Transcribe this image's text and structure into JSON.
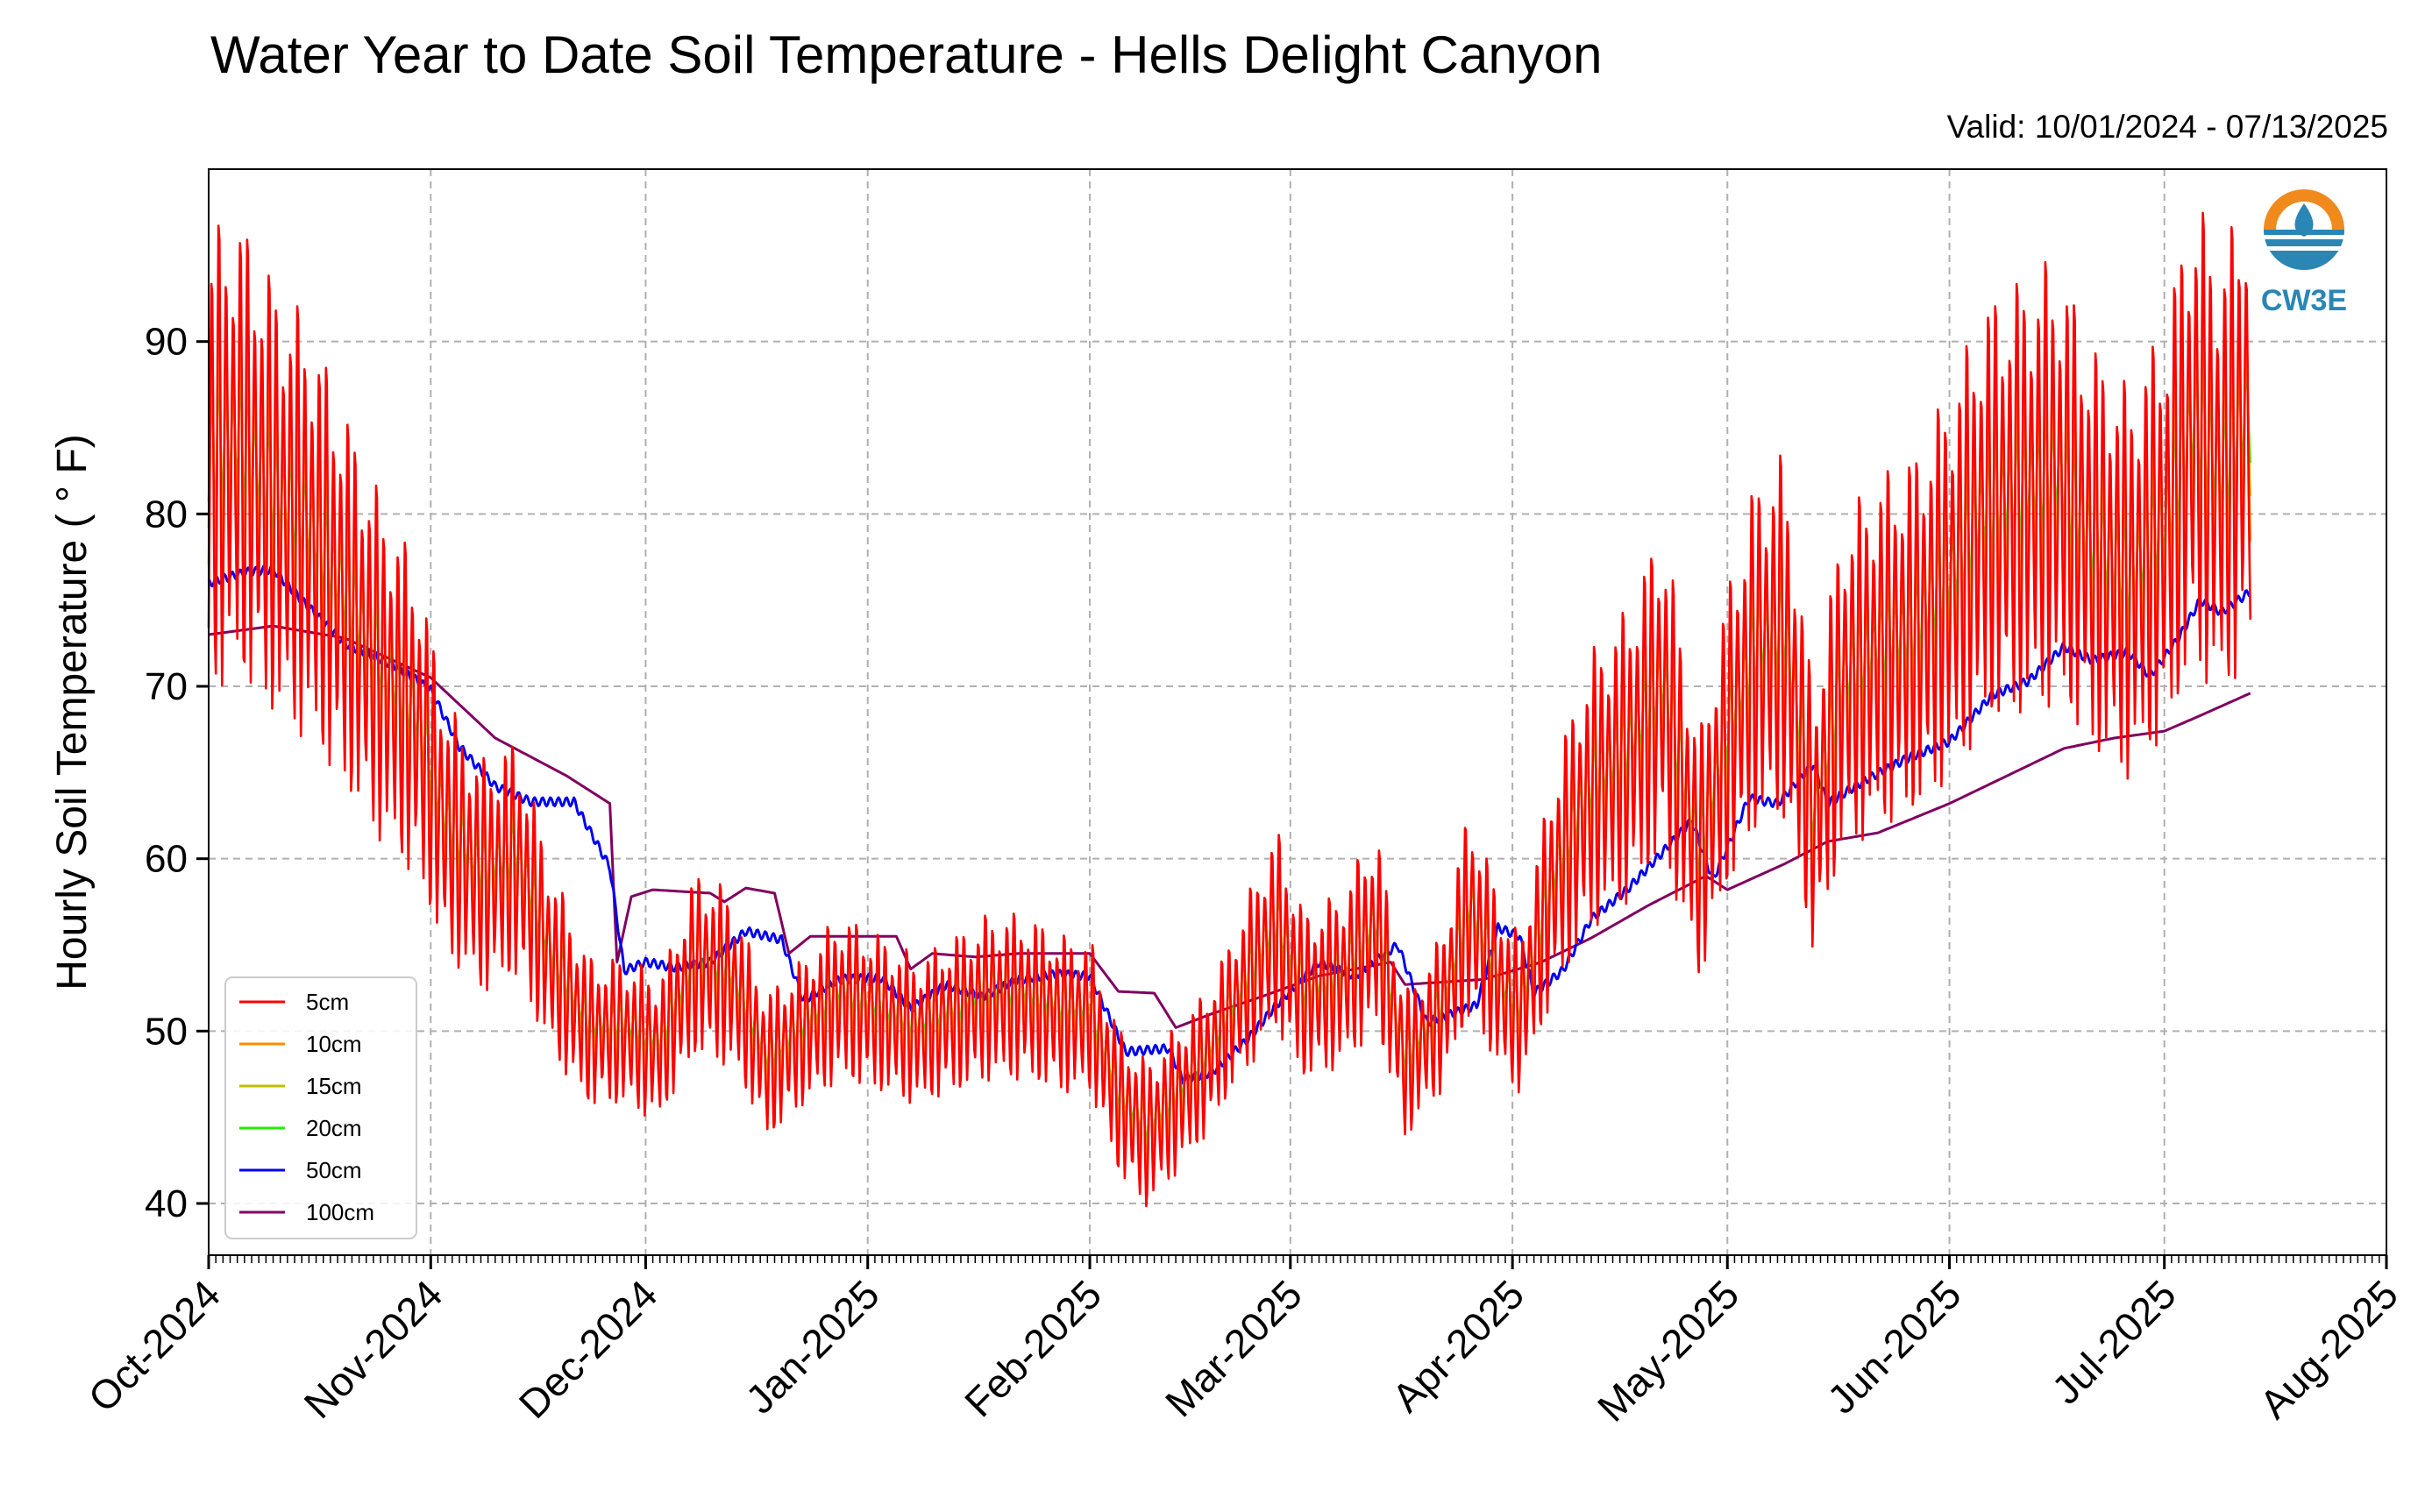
{
  "header": {
    "title": "Water Year to Date Soil Temperature - Hells Delight Canyon",
    "valid": "Valid: 10/01/2024 - 07/13/2025"
  },
  "logo": {
    "text": "CW3E",
    "icon": "cw3e-water-drop-logo"
  },
  "chart_data": {
    "type": "line",
    "title": "Water Year to Date Soil Temperature - Hells Delight Canyon",
    "xlabel": "",
    "ylabel": "Hourly Soil Temperature ( ° F)",
    "ylim": [
      37,
      100
    ],
    "xlim": [
      "2024-10-01",
      "2025-08-01"
    ],
    "yticks": [
      40,
      50,
      60,
      70,
      80,
      90
    ],
    "xticks": [
      {
        "date": "2024-10-01",
        "label": "Oct-2024"
      },
      {
        "date": "2024-11-01",
        "label": "Nov-2024"
      },
      {
        "date": "2024-12-01",
        "label": "Dec-2024"
      },
      {
        "date": "2025-01-01",
        "label": "Jan-2025"
      },
      {
        "date": "2025-02-01",
        "label": "Feb-2025"
      },
      {
        "date": "2025-03-01",
        "label": "Mar-2025"
      },
      {
        "date": "2025-04-01",
        "label": "Apr-2025"
      },
      {
        "date": "2025-05-01",
        "label": "May-2025"
      },
      {
        "date": "2025-06-01",
        "label": "Jun-2025"
      },
      {
        "date": "2025-07-01",
        "label": "Jul-2025"
      },
      {
        "date": "2025-08-01",
        "label": "Aug-2025"
      }
    ],
    "grid": true,
    "legend_position": "lower-left",
    "mean_5cm": [
      [
        "2024-10-01",
        83
      ],
      [
        "2024-10-05",
        84
      ],
      [
        "2024-10-10",
        81
      ],
      [
        "2024-10-15",
        79
      ],
      [
        "2024-10-20",
        75
      ],
      [
        "2024-10-25",
        71
      ],
      [
        "2024-10-30",
        68
      ],
      [
        "2024-11-03",
        62
      ],
      [
        "2024-11-08",
        59
      ],
      [
        "2024-11-13",
        60
      ],
      [
        "2024-11-18",
        54
      ],
      [
        "2024-11-23",
        50
      ],
      [
        "2024-11-28",
        50
      ],
      [
        "2024-12-03",
        49
      ],
      [
        "2024-12-08",
        54
      ],
      [
        "2024-12-13",
        53
      ],
      [
        "2024-12-18",
        48
      ],
      [
        "2024-12-23",
        50
      ],
      [
        "2024-12-28",
        52
      ],
      [
        "2025-01-03",
        51
      ],
      [
        "2025-01-08",
        50
      ],
      [
        "2025-01-13",
        51
      ],
      [
        "2025-01-18",
        52
      ],
      [
        "2025-01-23",
        52
      ],
      [
        "2025-01-28",
        51
      ],
      [
        "2025-02-01",
        51
      ],
      [
        "2025-02-05",
        46
      ],
      [
        "2025-02-09",
        44
      ],
      [
        "2025-02-13",
        46
      ],
      [
        "2025-02-17",
        48
      ],
      [
        "2025-02-22",
        52
      ],
      [
        "2025-02-27",
        56
      ],
      [
        "2025-03-03",
        52
      ],
      [
        "2025-03-08",
        53
      ],
      [
        "2025-03-13",
        56
      ],
      [
        "2025-03-17",
        48
      ],
      [
        "2025-03-22",
        51
      ],
      [
        "2025-03-26",
        57
      ],
      [
        "2025-03-31",
        52
      ],
      [
        "2025-04-02",
        51
      ],
      [
        "2025-04-07",
        59
      ],
      [
        "2025-04-12",
        64
      ],
      [
        "2025-04-17",
        66
      ],
      [
        "2025-04-22",
        70
      ],
      [
        "2025-04-27",
        60
      ],
      [
        "2025-05-01",
        67
      ],
      [
        "2025-05-05",
        72
      ],
      [
        "2025-05-09",
        73
      ],
      [
        "2025-05-13",
        62
      ],
      [
        "2025-05-17",
        70
      ],
      [
        "2025-05-22",
        72
      ],
      [
        "2025-05-27",
        73
      ],
      [
        "2025-06-01",
        76
      ],
      [
        "2025-06-06",
        80
      ],
      [
        "2025-06-11",
        81
      ],
      [
        "2025-06-16",
        82
      ],
      [
        "2025-06-21",
        78
      ],
      [
        "2025-06-26",
        76
      ],
      [
        "2025-07-01",
        79
      ],
      [
        "2025-07-05",
        85
      ],
      [
        "2025-07-09",
        82
      ],
      [
        "2025-07-13",
        86
      ]
    ],
    "series": [
      {
        "name": "5cm",
        "color": "#ff0000",
        "depth": 0,
        "mean": "mean_5cm",
        "offset": 0,
        "amplitude": 1.0
      },
      {
        "name": "10cm",
        "color": "#ff8c00",
        "depth": 1,
        "mean": "mean_5cm",
        "offset": 0.3,
        "amplitude": 0.65
      },
      {
        "name": "15cm",
        "color": "#bfbf00",
        "depth": 2,
        "mean": "mean_5cm",
        "offset": 0.5,
        "amplitude": 0.45
      },
      {
        "name": "20cm",
        "color": "#22ee00",
        "depth": 3,
        "mean": "mean_5cm",
        "offset": 0.6,
        "amplitude": 0.3
      },
      {
        "name": "50cm",
        "color": "#0000ee",
        "smooth": true,
        "points": [
          [
            "2024-10-01",
            76.0
          ],
          [
            "2024-10-06",
            76.6
          ],
          [
            "2024-10-10",
            76.8
          ],
          [
            "2024-10-14",
            75.0
          ],
          [
            "2024-10-20",
            72.5
          ],
          [
            "2024-10-27",
            71.2
          ],
          [
            "2024-11-01",
            69.8
          ],
          [
            "2024-11-05",
            66.5
          ],
          [
            "2024-11-10",
            64.2
          ],
          [
            "2024-11-15",
            63.3
          ],
          [
            "2024-11-21",
            63.3
          ],
          [
            "2024-11-26",
            59.5
          ],
          [
            "2024-11-28",
            53.5
          ],
          [
            "2024-12-01",
            54.0
          ],
          [
            "2024-12-05",
            53.7
          ],
          [
            "2024-12-10",
            54.0
          ],
          [
            "2024-12-15",
            55.8
          ],
          [
            "2024-12-20",
            55.3
          ],
          [
            "2024-12-23",
            51.8
          ],
          [
            "2024-12-28",
            53.0
          ],
          [
            "2025-01-03",
            53.1
          ],
          [
            "2025-01-07",
            51.3
          ],
          [
            "2025-01-12",
            52.7
          ],
          [
            "2025-01-17",
            52.0
          ],
          [
            "2025-01-22",
            53.0
          ],
          [
            "2025-01-27",
            53.3
          ],
          [
            "2025-02-01",
            53.2
          ],
          [
            "2025-02-06",
            48.8
          ],
          [
            "2025-02-12",
            49.0
          ],
          [
            "2025-02-14",
            47.2
          ],
          [
            "2025-02-18",
            47.6
          ],
          [
            "2025-02-23",
            49.5
          ],
          [
            "2025-02-27",
            51.5
          ],
          [
            "2025-03-05",
            54.0
          ],
          [
            "2025-03-10",
            53.2
          ],
          [
            "2025-03-16",
            55.0
          ],
          [
            "2025-03-20",
            50.5
          ],
          [
            "2025-03-27",
            51.5
          ],
          [
            "2025-03-30",
            56.0
          ],
          [
            "2025-04-02",
            55.5
          ],
          [
            "2025-04-04",
            52.2
          ],
          [
            "2025-04-08",
            53.5
          ],
          [
            "2025-04-12",
            56.5
          ],
          [
            "2025-04-17",
            58.2
          ],
          [
            "2025-04-22",
            60.4
          ],
          [
            "2025-04-26",
            62.2
          ],
          [
            "2025-04-29",
            58.8
          ],
          [
            "2025-05-04",
            63.5
          ],
          [
            "2025-05-08",
            63.2
          ],
          [
            "2025-05-13",
            65.5
          ],
          [
            "2025-05-15",
            63.2
          ],
          [
            "2025-05-20",
            64.5
          ],
          [
            "2025-05-26",
            65.8
          ],
          [
            "2025-06-01",
            66.8
          ],
          [
            "2025-06-07",
            69.5
          ],
          [
            "2025-06-12",
            70.3
          ],
          [
            "2025-06-17",
            72.3
          ],
          [
            "2025-06-21",
            71.5
          ],
          [
            "2025-06-26",
            72.0
          ],
          [
            "2025-06-29",
            70.6
          ],
          [
            "2025-07-03",
            72.8
          ],
          [
            "2025-07-06",
            75.0
          ],
          [
            "2025-07-09",
            74.3
          ],
          [
            "2025-07-13",
            75.5
          ]
        ]
      },
      {
        "name": "100cm",
        "color": "#800060",
        "smooth": false,
        "points": [
          [
            "2024-10-01",
            73.0
          ],
          [
            "2024-10-10",
            73.5
          ],
          [
            "2024-10-20",
            72.8
          ],
          [
            "2024-11-01",
            70.5
          ],
          [
            "2024-11-10",
            67.0
          ],
          [
            "2024-11-20",
            64.8
          ],
          [
            "2024-11-26",
            63.2
          ],
          [
            "2024-11-27",
            54.0
          ],
          [
            "2024-11-29",
            57.8
          ],
          [
            "2024-12-02",
            58.2
          ],
          [
            "2024-12-10",
            58.0
          ],
          [
            "2024-12-12",
            57.5
          ],
          [
            "2024-12-15",
            58.3
          ],
          [
            "2024-12-19",
            58.0
          ],
          [
            "2024-12-21",
            54.5
          ],
          [
            "2024-12-24",
            55.5
          ],
          [
            "2025-01-05",
            55.5
          ],
          [
            "2025-01-07",
            53.6
          ],
          [
            "2025-01-10",
            54.5
          ],
          [
            "2025-01-16",
            54.3
          ],
          [
            "2025-01-22",
            54.5
          ],
          [
            "2025-02-01",
            54.5
          ],
          [
            "2025-02-05",
            52.3
          ],
          [
            "2025-02-10",
            52.2
          ],
          [
            "2025-02-13",
            50.2
          ],
          [
            "2025-02-18",
            51.0
          ],
          [
            "2025-02-25",
            52.0
          ],
          [
            "2025-03-05",
            53.2
          ],
          [
            "2025-03-15",
            54.0
          ],
          [
            "2025-03-17",
            52.7
          ],
          [
            "2025-03-28",
            53.0
          ],
          [
            "2025-04-05",
            54.0
          ],
          [
            "2025-04-12",
            55.4
          ],
          [
            "2025-04-20",
            57.3
          ],
          [
            "2025-04-28",
            59.0
          ],
          [
            "2025-05-01",
            58.2
          ],
          [
            "2025-05-09",
            59.7
          ],
          [
            "2025-05-15",
            61.0
          ],
          [
            "2025-05-22",
            61.5
          ],
          [
            "2025-06-01",
            63.2
          ],
          [
            "2025-06-10",
            65.0
          ],
          [
            "2025-06-17",
            66.4
          ],
          [
            "2025-06-24",
            67.0
          ],
          [
            "2025-07-01",
            67.4
          ],
          [
            "2025-07-06",
            68.3
          ],
          [
            "2025-07-13",
            69.6
          ]
        ]
      }
    ]
  },
  "legend": {
    "items": [
      {
        "label": "5cm",
        "color": "#ff0000"
      },
      {
        "label": "10cm",
        "color": "#ff8c00"
      },
      {
        "label": "15cm",
        "color": "#bfbf00"
      },
      {
        "label": "20cm",
        "color": "#22ee00"
      },
      {
        "label": "50cm",
        "color": "#0000ee"
      },
      {
        "label": "100cm",
        "color": "#800060"
      }
    ]
  }
}
